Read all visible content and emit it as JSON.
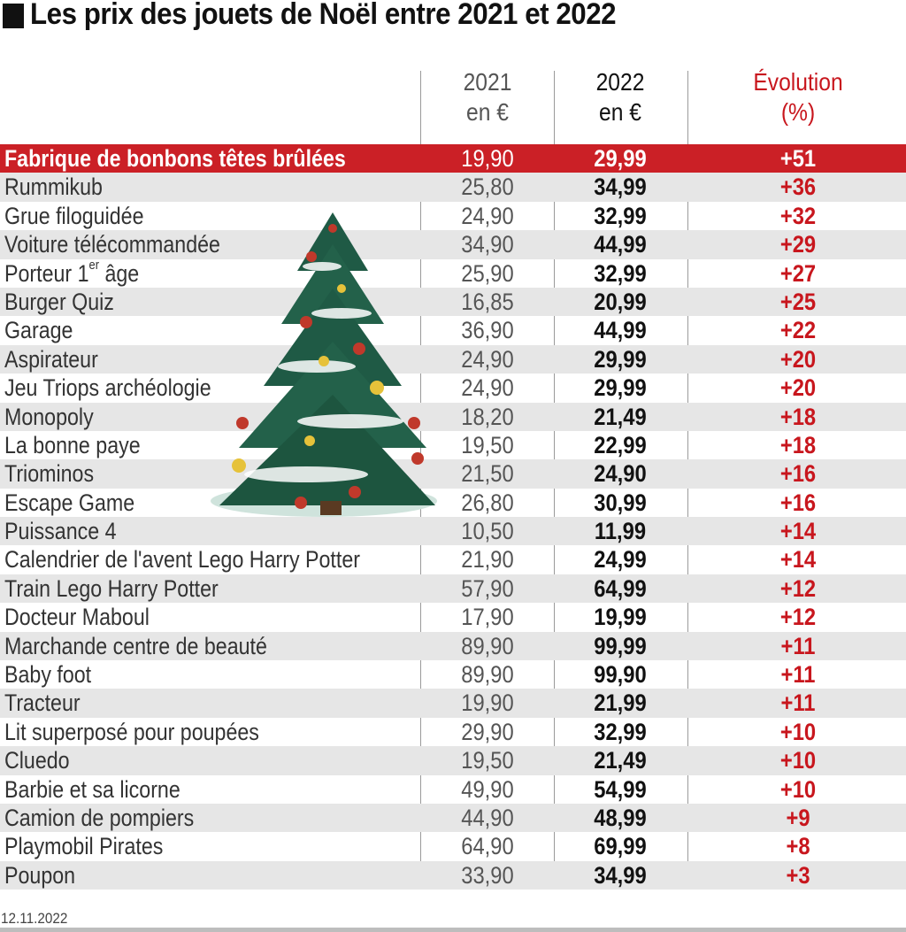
{
  "title": "Les prix des jouets de Noël entre 2021 et 2022",
  "date": "12.11.2022",
  "columns": {
    "c2021_line1": "2021",
    "c2021_line2": "en €",
    "c2022_line1": "2022",
    "c2022_line2": "en €",
    "evo_line1": "Évolution",
    "evo_line2": "(%)"
  },
  "colors": {
    "highlight": "#cb2026",
    "evolution": "#c8161d",
    "shade": "#e6e6e6"
  },
  "chart_data": {
    "type": "table",
    "title": "Les prix des jouets de Noël entre 2021 et 2022",
    "columns": [
      "2021 en €",
      "2022 en €",
      "Évolution (%)"
    ],
    "rows": [
      {
        "name": "Fabrique de bonbons têtes brûlées",
        "v2021": "19,90",
        "v2022": "29,99",
        "evo": "+51",
        "highlight": true
      },
      {
        "name": "Rummikub",
        "v2021": "25,80",
        "v2022": "34,99",
        "evo": "+36"
      },
      {
        "name": "Grue filoguidée",
        "v2021": "24,90",
        "v2022": "32,99",
        "evo": "+32"
      },
      {
        "name": "Voiture télécommandée",
        "v2021": "34,90",
        "v2022": "44,99",
        "evo": "+29"
      },
      {
        "name": "Porteur 1er âge",
        "v2021": "25,90",
        "v2022": "32,99",
        "evo": "+27",
        "sup_after": "Porteur 1",
        "sup": "er",
        "rest": " âge"
      },
      {
        "name": "Burger Quiz",
        "v2021": "16,85",
        "v2022": "20,99",
        "evo": "+25"
      },
      {
        "name": "Garage",
        "v2021": "36,90",
        "v2022": "44,99",
        "evo": "+22"
      },
      {
        "name": "Aspirateur",
        "v2021": "24,90",
        "v2022": "29,99",
        "evo": "+20"
      },
      {
        "name": "Jeu Triops archéologie",
        "v2021": "24,90",
        "v2022": "29,99",
        "evo": "+20"
      },
      {
        "name": "Monopoly",
        "v2021": "18,20",
        "v2022": "21,49",
        "evo": "+18"
      },
      {
        "name": "La bonne paye",
        "v2021": "19,50",
        "v2022": "22,99",
        "evo": "+18"
      },
      {
        "name": "Triominos",
        "v2021": "21,50",
        "v2022": "24,90",
        "evo": "+16"
      },
      {
        "name": "Escape Game",
        "v2021": "26,80",
        "v2022": "30,99",
        "evo": "+16"
      },
      {
        "name": "Puissance 4",
        "v2021": "10,50",
        "v2022": "11,99",
        "evo": "+14"
      },
      {
        "name": "Calendrier de l'avent Lego Harry Potter",
        "v2021": "21,90",
        "v2022": "24,99",
        "evo": "+14"
      },
      {
        "name": "Train Lego Harry Potter",
        "v2021": "57,90",
        "v2022": "64,99",
        "evo": "+12"
      },
      {
        "name": "Docteur Maboul",
        "v2021": "17,90",
        "v2022": "19,99",
        "evo": "+12"
      },
      {
        "name": "Marchande centre de beauté",
        "v2021": "89,90",
        "v2022": "99,99",
        "evo": "+11"
      },
      {
        "name": "Baby foot",
        "v2021": "89,90",
        "v2022": "99,90",
        "evo": "+11"
      },
      {
        "name": "Tracteur",
        "v2021": "19,90",
        "v2022": "21,99",
        "evo": "+11"
      },
      {
        "name": "Lit superposé pour poupées",
        "v2021": "29,90",
        "v2022": "32,99",
        "evo": "+10"
      },
      {
        "name": "Cluedo",
        "v2021": "19,50",
        "v2022": "21,49",
        "evo": "+10"
      },
      {
        "name": "Barbie et sa licorne",
        "v2021": "49,90",
        "v2022": "54,99",
        "evo": "+10"
      },
      {
        "name": "Camion de pompiers",
        "v2021": "44,90",
        "v2022": "48,99",
        "evo": "+9"
      },
      {
        "name": "Playmobil Pirates",
        "v2021": "64,90",
        "v2022": "69,99",
        "evo": "+8"
      },
      {
        "name": "Poupon",
        "v2021": "33,90",
        "v2022": "34,99",
        "evo": "+3"
      }
    ]
  },
  "decoration": {
    "icon": "christmas-tree-icon"
  }
}
